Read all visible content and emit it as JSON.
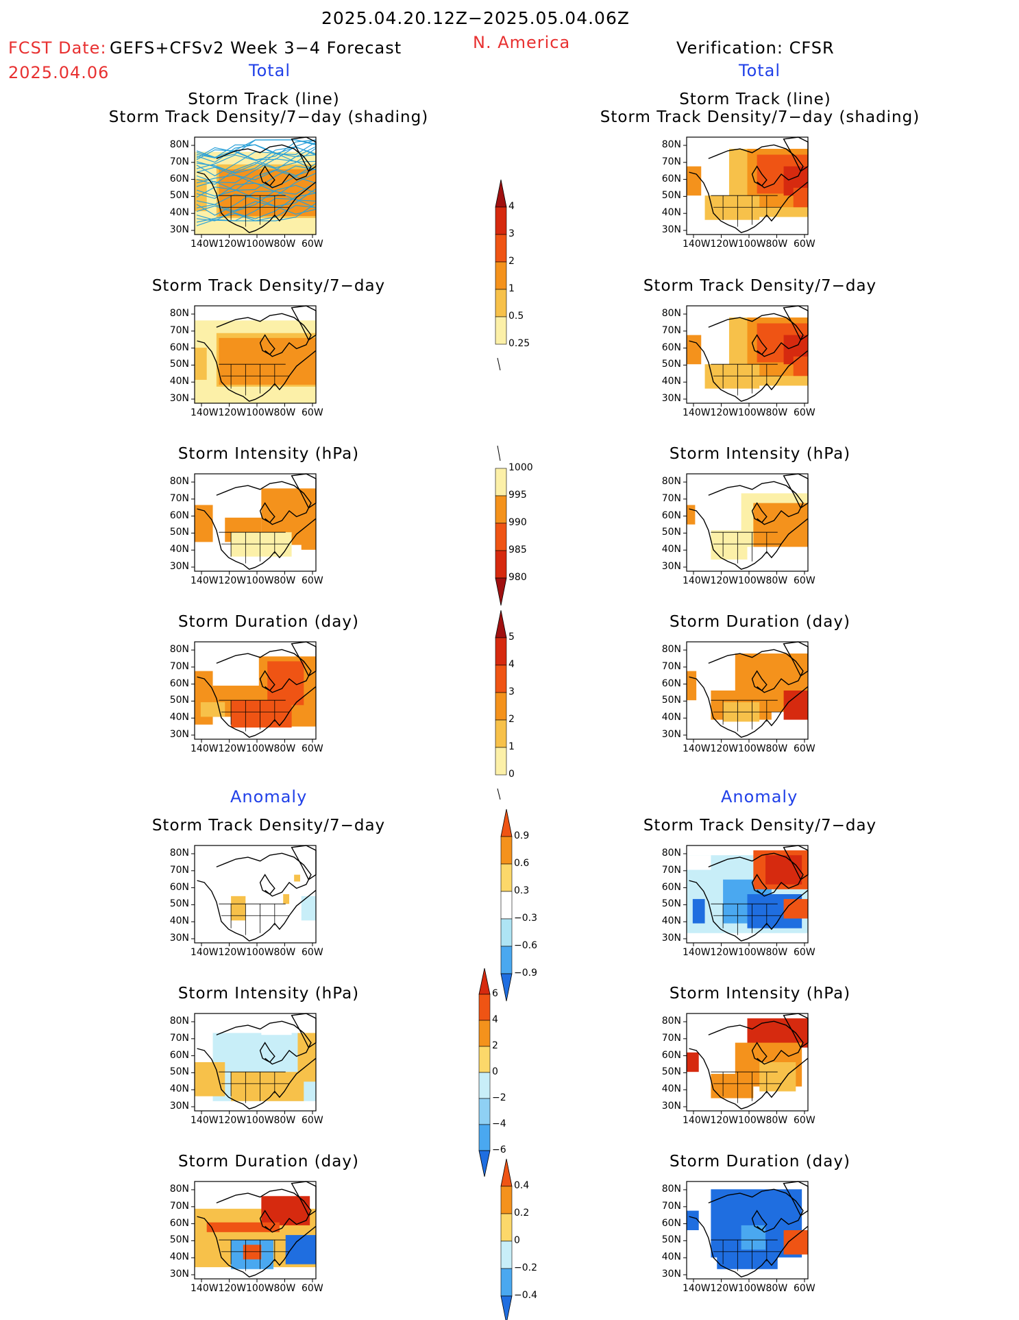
{
  "header": {
    "title": "2025.04.20.12Z−2025.05.04.06Z",
    "fcst_label": "FCST Date:",
    "fcst_model": "GEFS+CFSv2 Week 3−4 Forecast",
    "fcst_date": "2025.04.06",
    "region": "N. America",
    "verification": "Verification: CFSR"
  },
  "sections": {
    "total_left": "Total",
    "total_right": "Total",
    "anomaly_left": "Anomaly",
    "anomaly_right": "Anomaly"
  },
  "panel_titles": {
    "track_line": "Storm Track (line)",
    "track_shading": "Storm Track Density/7−day (shading)",
    "density": "Storm Track Density/7−day",
    "intensity": "Storm Intensity (hPa)",
    "duration": "Storm Duration (day)"
  },
  "axes": {
    "lat_labels": [
      "80N",
      "70N",
      "60N",
      "50N",
      "40N",
      "30N"
    ],
    "lon_labels": [
      "140W",
      "120W",
      "100W",
      "80W",
      "60W"
    ]
  },
  "colorbars": {
    "density_total": {
      "ticks": [
        "4",
        "3",
        "2",
        "1",
        "0.5",
        "0.25"
      ],
      "colors": [
        "#a01010",
        "#d62a0f",
        "#ef5414",
        "#f4921c",
        "#f7c14a",
        "#fcf0a8"
      ]
    },
    "intensity_total": {
      "ticks": [
        "1000",
        "995",
        "990",
        "985",
        "980"
      ],
      "colors": [
        "#fcf0a8",
        "#f4921c",
        "#ef5414",
        "#d62a0f",
        "#a01010"
      ]
    },
    "duration_total": {
      "ticks": [
        "5",
        "4",
        "3",
        "2",
        "1",
        "0"
      ],
      "colors": [
        "#a01010",
        "#d62a0f",
        "#ef5414",
        "#f4921c",
        "#f7c14a",
        "#fcf0a8"
      ]
    },
    "density_anom": {
      "ticks": [
        "0.9",
        "0.6",
        "0.3",
        "−0.3",
        "−0.6",
        "−0.9"
      ],
      "colors": [
        "#ef5414",
        "#f4921c",
        "#fcd86a",
        "#ffffff",
        "#aee4f4",
        "#4aa8f0",
        "#1f6ee0"
      ]
    },
    "intensity_anom": {
      "ticks": [
        "6",
        "4",
        "2",
        "0",
        "−2",
        "−4",
        "−6"
      ],
      "colors": [
        "#d62a0f",
        "#ef5414",
        "#f4921c",
        "#fcd86a",
        "#c8eef8",
        "#8fd0f4",
        "#4aa8f0",
        "#1f6ee0"
      ]
    },
    "duration_anom": {
      "ticks": [
        "0.4",
        "0.2",
        "0",
        "−0.2",
        "−0.4"
      ],
      "colors": [
        "#ef5414",
        "#f4921c",
        "#fcd86a",
        "#c8eef8",
        "#4aa8f0",
        "#1f6ee0"
      ]
    }
  },
  "palette": {
    "storm_track_line": "#2aa0d8",
    "coast": "#000000"
  }
}
